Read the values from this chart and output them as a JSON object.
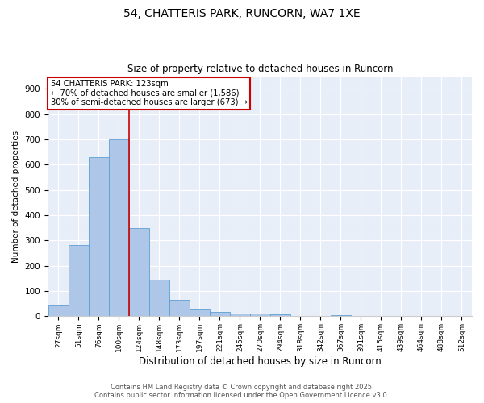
{
  "title1": "54, CHATTERIS PARK, RUNCORN, WA7 1XE",
  "title2": "Size of property relative to detached houses in Runcorn",
  "xlabel": "Distribution of detached houses by size in Runcorn",
  "ylabel": "Number of detached properties",
  "bins": [
    "27sqm",
    "51sqm",
    "76sqm",
    "100sqm",
    "124sqm",
    "148sqm",
    "173sqm",
    "197sqm",
    "221sqm",
    "245sqm",
    "270sqm",
    "294sqm",
    "318sqm",
    "342sqm",
    "367sqm",
    "391sqm",
    "415sqm",
    "439sqm",
    "464sqm",
    "488sqm",
    "512sqm"
  ],
  "values": [
    42,
    283,
    630,
    700,
    350,
    145,
    65,
    30,
    17,
    12,
    10,
    7,
    0,
    0,
    5,
    0,
    0,
    0,
    0,
    0,
    0
  ],
  "bar_color": "#aec6e8",
  "bar_edge_color": "#5a9fd4",
  "vline_pos": 3.5,
  "vline_color": "#cc0000",
  "annotation_title": "54 CHATTERIS PARK: 123sqm",
  "annotation_line1": "← 70% of detached houses are smaller (1,586)",
  "annotation_line2": "30% of semi-detached houses are larger (673) →",
  "annotation_box_color": "#cc0000",
  "ylim": [
    0,
    950
  ],
  "yticks": [
    0,
    100,
    200,
    300,
    400,
    500,
    600,
    700,
    800,
    900
  ],
  "footnote1": "Contains HM Land Registry data © Crown copyright and database right 2025.",
  "footnote2": "Contains public sector information licensed under the Open Government Licence v3.0.",
  "background_color": "#e8eef8"
}
